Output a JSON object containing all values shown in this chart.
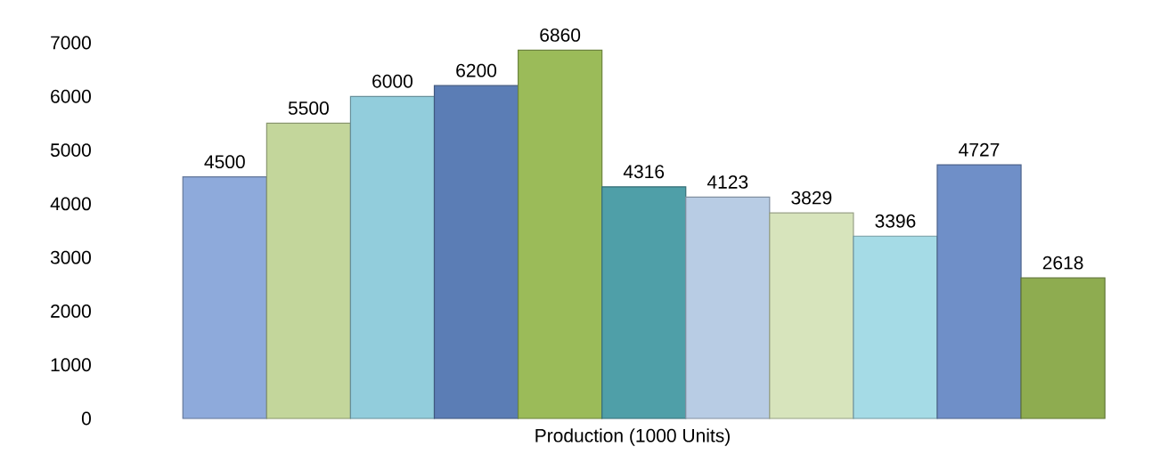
{
  "chart_data": {
    "type": "bar",
    "xlabel": "Production (1000 Units)",
    "categories": [
      null,
      null,
      null,
      null,
      null,
      null,
      null,
      null,
      null,
      null,
      null
    ],
    "values": [
      4500,
      5500,
      6000,
      6200,
      6860,
      4316,
      4123,
      3829,
      3396,
      4727,
      2618
    ],
    "colors": [
      "#8eaadb",
      "#c3d69b",
      "#92cddc",
      "#5b7db5",
      "#9bbb59",
      "#4f9fa8",
      "#b8cce4",
      "#d7e4bc",
      "#a5dbe6",
      "#6f8fc8",
      "#8eac50"
    ],
    "ylim": [
      0,
      7000
    ],
    "yticks": [
      0,
      1000,
      2000,
      3000,
      4000,
      5000,
      6000,
      7000
    ],
    "data_labels": true
  }
}
